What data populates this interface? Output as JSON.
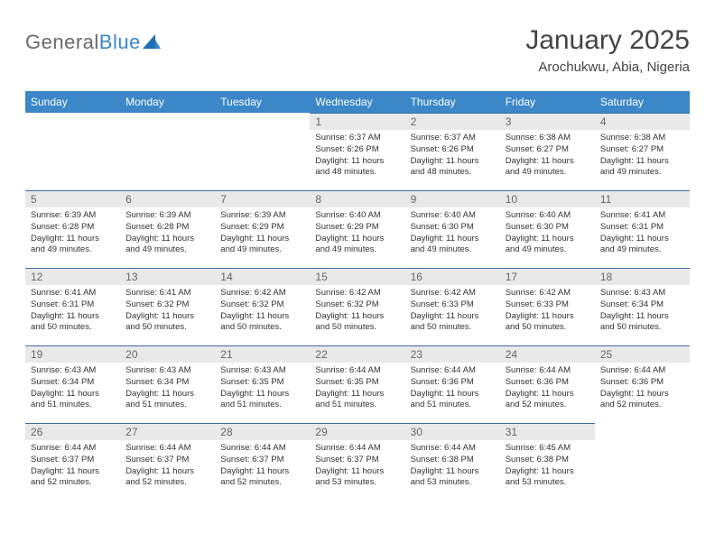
{
  "branding": {
    "name_part1": "General",
    "name_part2": "Blue",
    "text_color_part1": "#6a6a6a",
    "text_color_part2": "#3b87c8",
    "mark_color": "#1f6fb2"
  },
  "title": "January 2025",
  "location": "Arochukwu, Abia, Nigeria",
  "colors": {
    "header_bg": "#3b87c8",
    "header_text": "#ffffff",
    "daynum_bg": "#e9e9e9",
    "daynum_text": "#666666",
    "body_text": "#333333",
    "rule": "#3b6fa0",
    "page_bg": "#ffffff"
  },
  "typography": {
    "title_fontsize": 30,
    "location_fontsize": 15,
    "weekday_fontsize": 12,
    "daynum_fontsize": 12,
    "cell_fontsize": 9.5
  },
  "weekday_labels": [
    "Sunday",
    "Monday",
    "Tuesday",
    "Wednesday",
    "Thursday",
    "Friday",
    "Saturday"
  ],
  "weeks": [
    [
      {
        "day": "",
        "sunrise": "",
        "sunset": "",
        "daylight": ""
      },
      {
        "day": "",
        "sunrise": "",
        "sunset": "",
        "daylight": ""
      },
      {
        "day": "",
        "sunrise": "",
        "sunset": "",
        "daylight": ""
      },
      {
        "day": "1",
        "sunrise": "Sunrise: 6:37 AM",
        "sunset": "Sunset: 6:26 PM",
        "daylight": "Daylight: 11 hours and 48 minutes."
      },
      {
        "day": "2",
        "sunrise": "Sunrise: 6:37 AM",
        "sunset": "Sunset: 6:26 PM",
        "daylight": "Daylight: 11 hours and 48 minutes."
      },
      {
        "day": "3",
        "sunrise": "Sunrise: 6:38 AM",
        "sunset": "Sunset: 6:27 PM",
        "daylight": "Daylight: 11 hours and 49 minutes."
      },
      {
        "day": "4",
        "sunrise": "Sunrise: 6:38 AM",
        "sunset": "Sunset: 6:27 PM",
        "daylight": "Daylight: 11 hours and 49 minutes."
      }
    ],
    [
      {
        "day": "5",
        "sunrise": "Sunrise: 6:39 AM",
        "sunset": "Sunset: 6:28 PM",
        "daylight": "Daylight: 11 hours and 49 minutes."
      },
      {
        "day": "6",
        "sunrise": "Sunrise: 6:39 AM",
        "sunset": "Sunset: 6:28 PM",
        "daylight": "Daylight: 11 hours and 49 minutes."
      },
      {
        "day": "7",
        "sunrise": "Sunrise: 6:39 AM",
        "sunset": "Sunset: 6:29 PM",
        "daylight": "Daylight: 11 hours and 49 minutes."
      },
      {
        "day": "8",
        "sunrise": "Sunrise: 6:40 AM",
        "sunset": "Sunset: 6:29 PM",
        "daylight": "Daylight: 11 hours and 49 minutes."
      },
      {
        "day": "9",
        "sunrise": "Sunrise: 6:40 AM",
        "sunset": "Sunset: 6:30 PM",
        "daylight": "Daylight: 11 hours and 49 minutes."
      },
      {
        "day": "10",
        "sunrise": "Sunrise: 6:40 AM",
        "sunset": "Sunset: 6:30 PM",
        "daylight": "Daylight: 11 hours and 49 minutes."
      },
      {
        "day": "11",
        "sunrise": "Sunrise: 6:41 AM",
        "sunset": "Sunset: 6:31 PM",
        "daylight": "Daylight: 11 hours and 49 minutes."
      }
    ],
    [
      {
        "day": "12",
        "sunrise": "Sunrise: 6:41 AM",
        "sunset": "Sunset: 6:31 PM",
        "daylight": "Daylight: 11 hours and 50 minutes."
      },
      {
        "day": "13",
        "sunrise": "Sunrise: 6:41 AM",
        "sunset": "Sunset: 6:32 PM",
        "daylight": "Daylight: 11 hours and 50 minutes."
      },
      {
        "day": "14",
        "sunrise": "Sunrise: 6:42 AM",
        "sunset": "Sunset: 6:32 PM",
        "daylight": "Daylight: 11 hours and 50 minutes."
      },
      {
        "day": "15",
        "sunrise": "Sunrise: 6:42 AM",
        "sunset": "Sunset: 6:32 PM",
        "daylight": "Daylight: 11 hours and 50 minutes."
      },
      {
        "day": "16",
        "sunrise": "Sunrise: 6:42 AM",
        "sunset": "Sunset: 6:33 PM",
        "daylight": "Daylight: 11 hours and 50 minutes."
      },
      {
        "day": "17",
        "sunrise": "Sunrise: 6:42 AM",
        "sunset": "Sunset: 6:33 PM",
        "daylight": "Daylight: 11 hours and 50 minutes."
      },
      {
        "day": "18",
        "sunrise": "Sunrise: 6:43 AM",
        "sunset": "Sunset: 6:34 PM",
        "daylight": "Daylight: 11 hours and 50 minutes."
      }
    ],
    [
      {
        "day": "19",
        "sunrise": "Sunrise: 6:43 AM",
        "sunset": "Sunset: 6:34 PM",
        "daylight": "Daylight: 11 hours and 51 minutes."
      },
      {
        "day": "20",
        "sunrise": "Sunrise: 6:43 AM",
        "sunset": "Sunset: 6:34 PM",
        "daylight": "Daylight: 11 hours and 51 minutes."
      },
      {
        "day": "21",
        "sunrise": "Sunrise: 6:43 AM",
        "sunset": "Sunset: 6:35 PM",
        "daylight": "Daylight: 11 hours and 51 minutes."
      },
      {
        "day": "22",
        "sunrise": "Sunrise: 6:44 AM",
        "sunset": "Sunset: 6:35 PM",
        "daylight": "Daylight: 11 hours and 51 minutes."
      },
      {
        "day": "23",
        "sunrise": "Sunrise: 6:44 AM",
        "sunset": "Sunset: 6:36 PM",
        "daylight": "Daylight: 11 hours and 51 minutes."
      },
      {
        "day": "24",
        "sunrise": "Sunrise: 6:44 AM",
        "sunset": "Sunset: 6:36 PM",
        "daylight": "Daylight: 11 hours and 52 minutes."
      },
      {
        "day": "25",
        "sunrise": "Sunrise: 6:44 AM",
        "sunset": "Sunset: 6:36 PM",
        "daylight": "Daylight: 11 hours and 52 minutes."
      }
    ],
    [
      {
        "day": "26",
        "sunrise": "Sunrise: 6:44 AM",
        "sunset": "Sunset: 6:37 PM",
        "daylight": "Daylight: 11 hours and 52 minutes."
      },
      {
        "day": "27",
        "sunrise": "Sunrise: 6:44 AM",
        "sunset": "Sunset: 6:37 PM",
        "daylight": "Daylight: 11 hours and 52 minutes."
      },
      {
        "day": "28",
        "sunrise": "Sunrise: 6:44 AM",
        "sunset": "Sunset: 6:37 PM",
        "daylight": "Daylight: 11 hours and 52 minutes."
      },
      {
        "day": "29",
        "sunrise": "Sunrise: 6:44 AM",
        "sunset": "Sunset: 6:37 PM",
        "daylight": "Daylight: 11 hours and 53 minutes."
      },
      {
        "day": "30",
        "sunrise": "Sunrise: 6:44 AM",
        "sunset": "Sunset: 6:38 PM",
        "daylight": "Daylight: 11 hours and 53 minutes."
      },
      {
        "day": "31",
        "sunrise": "Sunrise: 6:45 AM",
        "sunset": "Sunset: 6:38 PM",
        "daylight": "Daylight: 11 hours and 53 minutes."
      },
      {
        "day": "",
        "sunrise": "",
        "sunset": "",
        "daylight": ""
      }
    ]
  ]
}
